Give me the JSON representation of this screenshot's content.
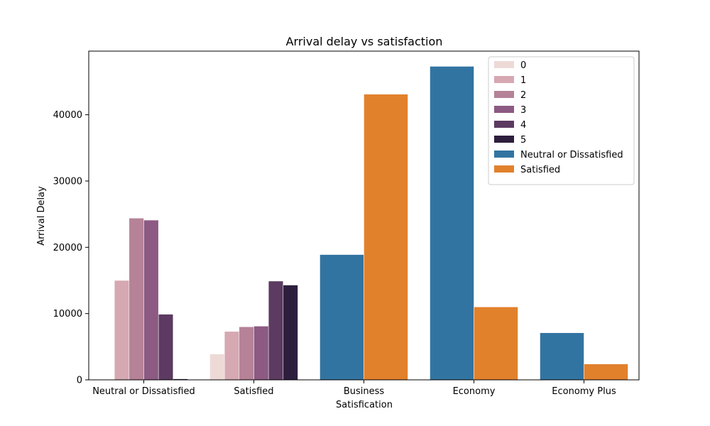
{
  "chart_data": {
    "type": "bar",
    "title": "Arrival delay vs satisfaction",
    "xlabel": "Satisfication",
    "ylabel": "Arrival Delay",
    "ylim": [
      0,
      49600
    ],
    "yticks": [
      "0",
      "10000",
      "20000",
      "30000",
      "40000"
    ],
    "ytick_values": [
      0,
      10000,
      20000,
      30000,
      40000
    ],
    "categories": [
      "Neutral or Dissatisfied",
      "Satisfied",
      "Business",
      "Economy",
      "Economy Plus"
    ],
    "grid": false,
    "legend_position": "top-right",
    "series": [
      {
        "name": "0",
        "color": "#eddad7",
        "values": [
          0,
          3900,
          null,
          null,
          null
        ]
      },
      {
        "name": "1",
        "color": "#d6a8b2",
        "values": [
          15000,
          7300,
          null,
          null,
          null
        ]
      },
      {
        "name": "2",
        "color": "#b58297",
        "values": [
          24400,
          8000,
          null,
          null,
          null
        ]
      },
      {
        "name": "3",
        "color": "#8c5a82",
        "values": [
          24100,
          8100,
          null,
          null,
          null
        ]
      },
      {
        "name": "4",
        "color": "#5c3a61",
        "values": [
          9900,
          14900,
          null,
          null,
          null
        ]
      },
      {
        "name": "5",
        "color": "#2d1e3e",
        "values": [
          150,
          14300,
          null,
          null,
          null
        ]
      },
      {
        "name": "Neutral or Dissatisfied",
        "color": "#3274a1",
        "values": [
          null,
          null,
          18900,
          47300,
          7100
        ]
      },
      {
        "name": "Satisfied",
        "color": "#e1812c",
        "values": [
          null,
          null,
          43100,
          11000,
          2400
        ]
      }
    ]
  }
}
